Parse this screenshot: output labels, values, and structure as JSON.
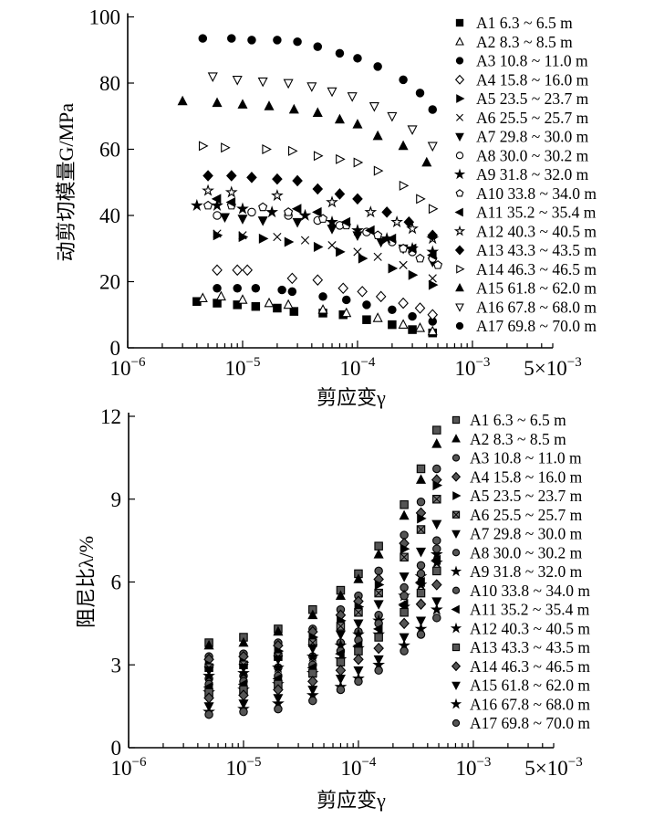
{
  "chart_data": [
    {
      "type": "scatter",
      "xscale": "log",
      "xlim": [
        1e-06,
        0.005
      ],
      "ylim": [
        0,
        100
      ],
      "xlabel": "剪应变γ",
      "ylabel": "动剪切模量G/MPa",
      "xticks": [
        {
          "base": "10",
          "exp": "−6",
          "v": 1e-06
        },
        {
          "base": "10",
          "exp": "−5",
          "v": 1e-05
        },
        {
          "base": "10",
          "exp": "−4",
          "v": 0.0001
        },
        {
          "base": "10",
          "exp": "−3",
          "v": 0.001
        },
        {
          "base": "5×10",
          "exp": "−3",
          "v": 0.005
        }
      ],
      "yticks": [
        "0",
        "20",
        "40",
        "60",
        "80",
        "100"
      ],
      "legend_position": "right",
      "series": [
        {
          "name": "A1  6.3 ~ 6.5 m",
          "marker": "square-filled",
          "x": [
            4e-06,
            6e-06,
            9e-06,
            1.3e-05,
            2e-05,
            2.8e-05,
            5e-05,
            7.5e-05,
            0.00012,
            0.0002,
            0.0003,
            0.00045
          ],
          "y": [
            14,
            13.5,
            13,
            12.5,
            12,
            11,
            10.5,
            10,
            8.5,
            7,
            5.5,
            4.5
          ]
        },
        {
          "name": "A2  8.3 ~ 8.5 m",
          "marker": "triangle-up-open",
          "x": [
            4.5e-06,
            6.5e-06,
            1e-05,
            1.7e-05,
            2.5e-05,
            5e-05,
            8e-05,
            0.00015,
            0.00025,
            0.00035,
            0.00045
          ],
          "y": [
            15,
            15.5,
            14.5,
            13.5,
            13,
            11.5,
            10.5,
            9,
            7,
            6,
            5
          ]
        },
        {
          "name": "A3  10.8 ~ 11.0 m",
          "marker": "circle-filled",
          "x": [
            6e-06,
            9e-06,
            1.3e-05,
            2.2e-05,
            2.7e-05,
            5e-05,
            8e-05,
            0.00012,
            0.0002,
            0.0003,
            0.00045
          ],
          "y": [
            18,
            18,
            18,
            17.5,
            17,
            15.5,
            14.5,
            13,
            11.5,
            9.5,
            8
          ]
        },
        {
          "name": "A4  15.8 ~ 16.0 m",
          "marker": "diamond-open",
          "x": [
            6e-06,
            9e-06,
            1.1e-05,
            2.7e-05,
            4.5e-05,
            7.5e-05,
            0.00011,
            0.00016,
            0.00025,
            0.00035,
            0.00045
          ],
          "y": [
            23.5,
            23.5,
            23.5,
            21,
            20.5,
            18,
            17,
            15.5,
            13.5,
            12,
            10
          ]
        },
        {
          "name": "A5  23.5 ~ 23.7 m",
          "marker": "triangle-right-filled",
          "x": [
            6e-06,
            1e-05,
            1.5e-05,
            2.5e-05,
            4.5e-05,
            7e-05,
            0.00011,
            0.0002,
            0.0003,
            0.00045
          ],
          "y": [
            34,
            33.5,
            33,
            32,
            30.5,
            29,
            27,
            24,
            22,
            19
          ]
        },
        {
          "name": "A6  25.5 ~ 25.7 m",
          "marker": "cross",
          "x": [
            6e-06,
            1e-05,
            2e-05,
            3.5e-05,
            6e-05,
            0.0001,
            0.00015,
            0.00025,
            0.00045
          ],
          "y": [
            34.5,
            34,
            33.5,
            32.5,
            31,
            29,
            27.5,
            25,
            21
          ]
        },
        {
          "name": "A7  29.8 ~ 30.0 m",
          "marker": "triangle-down-filled",
          "x": [
            7e-06,
            1e-05,
            1.5e-05,
            3e-05,
            6e-05,
            0.0001,
            0.00016,
            0.00025,
            0.00045
          ],
          "y": [
            39.5,
            39,
            38.5,
            38,
            36,
            34,
            32,
            30,
            26
          ]
        },
        {
          "name": "A8  30.0 ~ 30.2 m",
          "marker": "circle-open",
          "x": [
            6e-06,
            1.2e-05,
            2.5e-05,
            4.5e-05,
            7e-05,
            0.00012,
            0.0002,
            0.0003,
            0.00045
          ],
          "y": [
            40,
            41,
            40,
            38.5,
            37,
            35,
            32,
            29,
            27
          ]
        },
        {
          "name": "A9  31.8 ~ 32.0 m",
          "marker": "star-filled",
          "x": [
            4e-06,
            6e-06,
            1e-05,
            1.8e-05,
            3.5e-05,
            6e-05,
            0.0001,
            0.00018,
            0.0003,
            0.00045
          ],
          "y": [
            43,
            43,
            42,
            41,
            40,
            38,
            35.5,
            33,
            30,
            29
          ]
        },
        {
          "name": "A10  33.8 ~ 34.0 m",
          "marker": "pentagon-open",
          "x": [
            5e-06,
            8e-06,
            1.5e-05,
            2.5e-05,
            5e-05,
            8e-05,
            0.00015,
            0.00025,
            0.00035,
            0.0005
          ],
          "y": [
            43,
            43,
            42.5,
            41,
            39,
            37,
            34,
            30,
            27,
            25
          ]
        },
        {
          "name": "A11  35.2 ~ 35.4 m",
          "marker": "triangle-left-filled",
          "x": [
            6e-06,
            8e-06,
            3e-05,
            4.5e-05,
            8e-05,
            0.00013,
            0.0002,
            0.0003,
            0.00045
          ],
          "y": [
            45,
            44,
            42,
            41,
            38,
            35.5,
            33,
            30,
            28
          ]
        },
        {
          "name": "A12  40.3 ~ 40.5 m",
          "marker": "star-open",
          "x": [
            5e-06,
            8e-06,
            2e-05,
            6e-05,
            0.00013,
            0.00022,
            0.0003,
            0.00045
          ],
          "y": [
            47.5,
            47,
            46,
            44,
            41,
            38,
            36,
            33
          ]
        },
        {
          "name": "A13  43.3 ~ 43.5 m",
          "marker": "diamond-filled",
          "x": [
            5e-06,
            8e-06,
            1.2e-05,
            2e-05,
            3e-05,
            4.5e-05,
            7e-05,
            0.0001,
            0.00018,
            0.00028,
            0.00045
          ],
          "y": [
            52,
            52,
            51.5,
            51,
            50.5,
            48,
            46.5,
            45,
            41,
            38,
            34
          ]
        },
        {
          "name": "A14  46.3 ~ 46.5 m",
          "marker": "triangle-right-open",
          "x": [
            4.5e-06,
            7e-06,
            1.6e-05,
            2.7e-05,
            4.5e-05,
            7e-05,
            0.0001,
            0.00015,
            0.00025,
            0.00035,
            0.00045
          ],
          "y": [
            61,
            60.5,
            60,
            59.5,
            58,
            57,
            56,
            53.5,
            49,
            45,
            42
          ]
        },
        {
          "name": "A15  61.8 ~ 62.0 m",
          "marker": "triangle-up-filled",
          "x": [
            3e-06,
            6e-06,
            1e-05,
            1.7e-05,
            2.8e-05,
            4.5e-05,
            7e-05,
            0.0001,
            0.00015,
            0.00025,
            0.0004
          ],
          "y": [
            74.5,
            74,
            73.5,
            73,
            72,
            71,
            69,
            67.5,
            64,
            61,
            56
          ]
        },
        {
          "name": "A16  67.8 ~ 68.0 m",
          "marker": "triangle-down-open",
          "x": [
            5.5e-06,
            9e-06,
            1.5e-05,
            2.5e-05,
            4e-05,
            6e-05,
            9e-05,
            0.00014,
            0.0002,
            0.0003,
            0.00045
          ],
          "y": [
            82,
            81,
            80.5,
            80,
            79,
            77.5,
            76,
            73,
            70,
            66,
            61
          ]
        },
        {
          "name": "A17  69.8 ~ 70.0 m",
          "marker": "circle-filled",
          "x": [
            4.5e-06,
            8e-06,
            1.2e-05,
            2e-05,
            3e-05,
            4.5e-05,
            7e-05,
            0.0001,
            0.00015,
            0.00025,
            0.00035,
            0.00045
          ],
          "y": [
            93.5,
            93.5,
            93,
            93,
            92.5,
            91,
            89,
            87.5,
            85,
            81,
            77,
            72
          ]
        }
      ]
    },
    {
      "type": "scatter",
      "xscale": "log",
      "xlim": [
        1e-06,
        0.005
      ],
      "ylim": [
        0,
        12
      ],
      "xlabel": "剪应变γ",
      "ylabel": "阻尼比λ/%",
      "xticks": [
        {
          "base": "10",
          "exp": "−6",
          "v": 1e-06
        },
        {
          "base": "10",
          "exp": "−5",
          "v": 1e-05
        },
        {
          "base": "10",
          "exp": "−4",
          "v": 0.0001
        },
        {
          "base": "10",
          "exp": "−3",
          "v": 0.001
        },
        {
          "base": "5×10",
          "exp": "−3",
          "v": 0.005
        }
      ],
      "yticks": [
        "0",
        "3",
        "6",
        "9",
        "12"
      ],
      "legend_position": "right",
      "x_common": [
        5e-06,
        1e-05,
        2e-05,
        4e-05,
        7e-05,
        0.0001,
        0.00015,
        0.00025,
        0.00035,
        0.00048
      ],
      "series": [
        {
          "name": "A1  6.3 ~ 6.5 m",
          "marker": "square-half",
          "y": [
            3.8,
            4.0,
            4.3,
            5.0,
            5.7,
            6.3,
            7.3,
            8.8,
            10.1,
            11.5
          ]
        },
        {
          "name": "A2  8.3 ~ 8.5 m",
          "marker": "triangle-up-filled",
          "y": [
            3.7,
            3.8,
            4.2,
            4.8,
            5.5,
            6.1,
            7.0,
            8.4,
            9.7,
            11.0
          ]
        },
        {
          "name": "A3  10.8 ~ 11.0 m",
          "marker": "circle-half",
          "y": [
            3.3,
            3.4,
            3.8,
            4.3,
            5.0,
            5.5,
            6.4,
            7.7,
            8.9,
            10.1
          ]
        },
        {
          "name": "A4  15.8 ~ 16.0 m",
          "marker": "diamond-half",
          "y": [
            3.2,
            3.3,
            3.7,
            4.2,
            4.8,
            5.3,
            6.1,
            7.4,
            8.5,
            9.7
          ]
        },
        {
          "name": "A5  23.5 ~ 23.7 m",
          "marker": "triangle-right-filled",
          "y": [
            3.0,
            3.1,
            3.5,
            4.0,
            4.6,
            5.1,
            5.9,
            7.2,
            8.3,
            9.5
          ]
        },
        {
          "name": "A6  25.5 ~ 25.7 m",
          "marker": "square-crossed",
          "y": [
            2.9,
            3.0,
            3.3,
            3.8,
            4.4,
            4.9,
            5.6,
            6.9,
            7.9,
            9.0
          ]
        },
        {
          "name": "A7  29.8 ~ 30.0 m",
          "marker": "triangle-down-filled",
          "y": [
            2.8,
            2.9,
            3.2,
            3.6,
            4.1,
            4.5,
            5.2,
            6.2,
            7.1,
            8.1
          ]
        },
        {
          "name": "A8  30.0 ~ 30.2 m",
          "marker": "circle-half",
          "y": [
            2.5,
            2.6,
            2.9,
            3.3,
            3.8,
            4.2,
            4.8,
            5.8,
            6.6,
            7.5
          ]
        },
        {
          "name": "A9  31.8 ~ 32.0 m",
          "marker": "star-filled",
          "y": [
            2.6,
            2.7,
            2.9,
            3.3,
            3.7,
            4.1,
            4.6,
            5.5,
            6.2,
            7.0
          ]
        },
        {
          "name": "A10  33.8 ~ 34.0 m",
          "marker": "circle-half",
          "y": [
            2.3,
            2.4,
            2.6,
            3.0,
            3.5,
            3.9,
            4.5,
            5.5,
            6.3,
            7.2
          ]
        },
        {
          "name": "A11  35.2 ~ 35.4 m",
          "marker": "triangle-left-filled",
          "y": [
            2.2,
            2.3,
            2.5,
            2.9,
            3.4,
            3.7,
            4.3,
            5.2,
            6.0,
            6.8
          ]
        },
        {
          "name": "A12  40.3 ~ 40.5 m",
          "marker": "star-filled",
          "y": [
            2.0,
            2.1,
            2.3,
            2.7,
            3.2,
            3.6,
            4.1,
            5.1,
            5.9,
            6.7
          ]
        },
        {
          "name": "A13  43.3 ~ 43.5 m",
          "marker": "square-half",
          "y": [
            2.0,
            2.1,
            2.3,
            2.7,
            3.1,
            3.5,
            4.0,
            4.9,
            5.6,
            6.4
          ]
        },
        {
          "name": "A14  46.3 ~ 46.5 m",
          "marker": "diamond-half",
          "y": [
            1.8,
            1.9,
            2.1,
            2.4,
            2.8,
            3.2,
            3.6,
            4.5,
            5.2,
            5.9
          ]
        },
        {
          "name": "A15  61.8 ~ 62.0 m",
          "marker": "triangle-down-filled",
          "y": [
            1.5,
            1.6,
            1.8,
            2.1,
            2.5,
            2.8,
            3.2,
            4.0,
            4.6,
            5.3
          ]
        },
        {
          "name": "A16  67.8 ~ 68.0 m",
          "marker": "star-filled",
          "y": [
            1.3,
            1.4,
            1.6,
            1.9,
            2.2,
            2.5,
            3.0,
            3.7,
            4.3,
            5.0
          ]
        },
        {
          "name": "A17  69.8 ~ 70.0 m",
          "marker": "circle-half",
          "y": [
            1.2,
            1.3,
            1.4,
            1.7,
            2.1,
            2.4,
            2.8,
            3.5,
            4.1,
            4.7
          ]
        }
      ]
    }
  ]
}
